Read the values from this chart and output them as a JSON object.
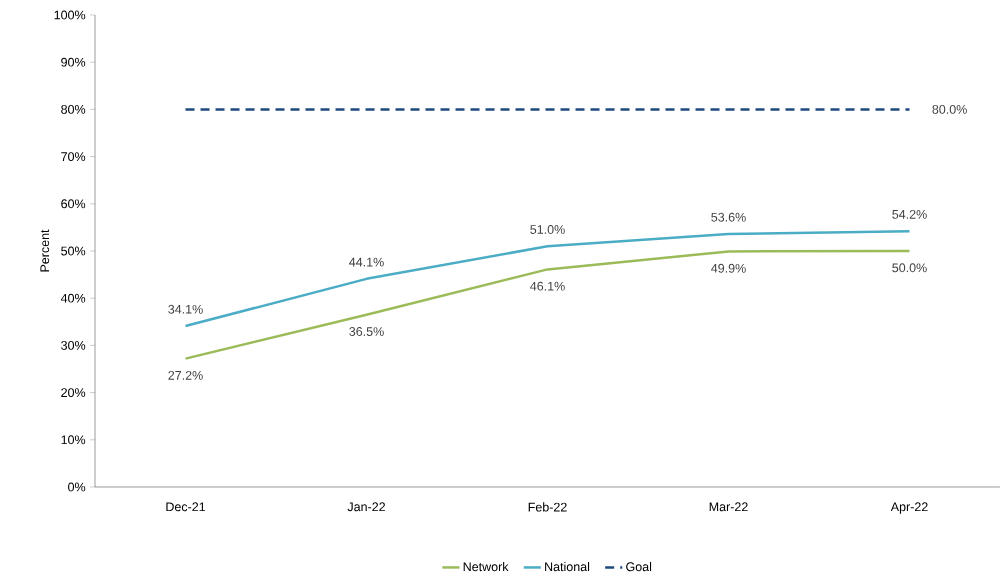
{
  "chart_data": {
    "type": "line",
    "ylabel": "Percent",
    "categories": [
      "Dec-21",
      "Jan-22",
      "Feb-22",
      "Mar-22",
      "Apr-22"
    ],
    "series": [
      {
        "name": "Network",
        "color": "#9bbb59",
        "line_style": "solid",
        "values": [
          27.2,
          36.5,
          46.1,
          49.9,
          50.0
        ],
        "value_labels": [
          "27.2%",
          "36.5%",
          "46.1%",
          "49.9%",
          "50.0%"
        ]
      },
      {
        "name": "National",
        "color": "#4bacc6",
        "line_style": "solid",
        "values": [
          34.1,
          44.1,
          51.0,
          53.6,
          54.2
        ],
        "value_labels": [
          "34.1%",
          "44.1%",
          "51.0%",
          "53.6%",
          "54.2%"
        ]
      },
      {
        "name": "Goal",
        "color": "#1f497d",
        "line_style": "dashed",
        "values": [
          80,
          80,
          80,
          80,
          80
        ],
        "value_labels": [
          null,
          null,
          null,
          null,
          "80.0%"
        ]
      }
    ],
    "ylim": [
      0,
      100
    ],
    "yticks": [
      {
        "value": 0,
        "label": "0%"
      },
      {
        "value": 10,
        "label": "10%"
      },
      {
        "value": 20,
        "label": "20%"
      },
      {
        "value": 30,
        "label": "30%"
      },
      {
        "value": 40,
        "label": "40%"
      },
      {
        "value": 50,
        "label": "50%"
      },
      {
        "value": 60,
        "label": "60%"
      },
      {
        "value": 70,
        "label": "70%"
      },
      {
        "value": 80,
        "label": "80%"
      },
      {
        "value": 90,
        "label": "90%"
      },
      {
        "value": 100,
        "label": "100%"
      }
    ],
    "grid": false,
    "legend": "bottom",
    "marker": "none"
  }
}
